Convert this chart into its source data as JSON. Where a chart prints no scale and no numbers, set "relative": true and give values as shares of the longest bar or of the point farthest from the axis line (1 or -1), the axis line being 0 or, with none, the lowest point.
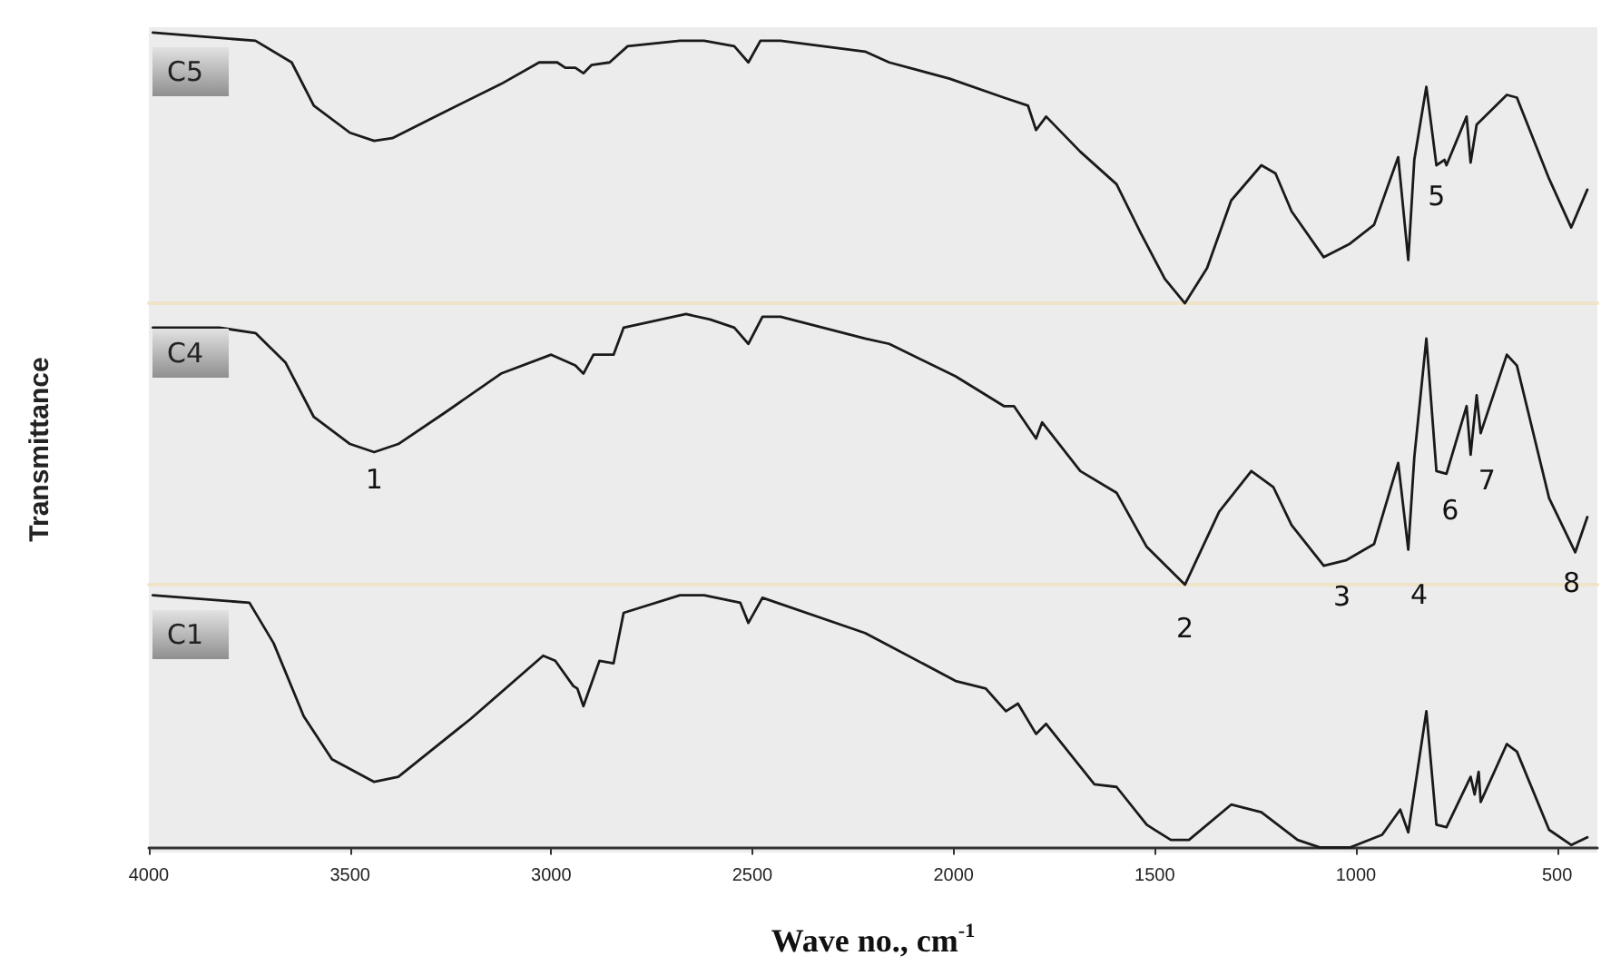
{
  "chart_data": [
    {
      "type": "line",
      "title": "C5",
      "relative": true,
      "color": "#1a1a1a",
      "marker": "none",
      "line_style": "solid",
      "xlim": [
        4000,
        400
      ],
      "xticks": [
        4000,
        3500,
        3000,
        2500,
        2000,
        1500,
        1000,
        500
      ],
      "tick_labels": false,
      "x": [
        3990,
        3735,
        3645,
        3590,
        3500,
        3440,
        3395,
        3275,
        3125,
        3030,
        2985,
        2965,
        2940,
        2920,
        2900,
        2855,
        2810,
        2680,
        2620,
        2545,
        2510,
        2480,
        2430,
        2220,
        2160,
        2010,
        1875,
        1815,
        1795,
        1770,
        1685,
        1595,
        1535,
        1475,
        1425,
        1370,
        1310,
        1235,
        1200,
        1160,
        1080,
        1015,
        955,
        895,
        870,
        855,
        825,
        800,
        780,
        775,
        725,
        715,
        700,
        625,
        600,
        520,
        465,
        425
      ],
      "values": [
        1.0,
        0.97,
        0.89,
        0.73,
        0.63,
        0.6,
        0.61,
        0.7,
        0.81,
        0.89,
        0.89,
        0.87,
        0.87,
        0.85,
        0.88,
        0.89,
        0.95,
        0.97,
        0.97,
        0.95,
        0.89,
        0.97,
        0.97,
        0.93,
        0.89,
        0.83,
        0.76,
        0.73,
        0.64,
        0.69,
        0.56,
        0.44,
        0.26,
        0.09,
        0.0,
        0.13,
        0.38,
        0.51,
        0.48,
        0.34,
        0.17,
        0.22,
        0.29,
        0.54,
        0.16,
        0.53,
        0.8,
        0.51,
        0.53,
        0.51,
        0.69,
        0.52,
        0.66,
        0.77,
        0.76,
        0.46,
        0.28,
        0.42
      ],
      "annotations": [
        {
          "text": "5",
          "x": 800,
          "y": 0.51
        }
      ]
    },
    {
      "type": "line",
      "title": "C4",
      "ylabel": "Transmittance",
      "relative": true,
      "color": "#1a1a1a",
      "marker": "none",
      "line_style": "solid",
      "xlim": [
        4000,
        400
      ],
      "xticks": [
        4000,
        3500,
        3000,
        2500,
        2000,
        1500,
        1000,
        500
      ],
      "tick_labels": false,
      "x": [
        3990,
        3825,
        3735,
        3660,
        3590,
        3500,
        3440,
        3380,
        3260,
        3125,
        3000,
        2940,
        2920,
        2895,
        2845,
        2820,
        2665,
        2605,
        2545,
        2510,
        2475,
        2430,
        2220,
        2160,
        1995,
        1875,
        1850,
        1795,
        1780,
        1685,
        1595,
        1520,
        1425,
        1340,
        1260,
        1205,
        1160,
        1080,
        1025,
        955,
        895,
        870,
        855,
        825,
        800,
        775,
        725,
        715,
        700,
        690,
        625,
        600,
        520,
        455,
        425
      ],
      "values": [
        0.95,
        0.95,
        0.93,
        0.82,
        0.62,
        0.52,
        0.49,
        0.52,
        0.64,
        0.78,
        0.85,
        0.81,
        0.78,
        0.85,
        0.85,
        0.95,
        1.0,
        0.98,
        0.95,
        0.89,
        0.99,
        0.99,
        0.91,
        0.89,
        0.77,
        0.66,
        0.66,
        0.54,
        0.6,
        0.42,
        0.34,
        0.14,
        0.0,
        0.27,
        0.42,
        0.36,
        0.22,
        0.07,
        0.09,
        0.15,
        0.45,
        0.13,
        0.47,
        0.91,
        0.42,
        0.41,
        0.66,
        0.48,
        0.7,
        0.56,
        0.85,
        0.81,
        0.32,
        0.12,
        0.25
      ],
      "annotations": [
        {
          "text": "1",
          "x": 3440,
          "y": 0.49
        },
        {
          "text": "2",
          "x": 1425,
          "y": 0.0
        },
        {
          "text": "3",
          "x": 1080,
          "y": 0.07
        },
        {
          "text": "4",
          "x": 870,
          "y": 0.13
        },
        {
          "text": "6",
          "x": 775,
          "y": 0.41
        },
        {
          "text": "7",
          "x": 715,
          "y": 0.48
        },
        {
          "text": "8",
          "x": 455,
          "y": 0.12
        }
      ]
    },
    {
      "type": "line",
      "title": "C1",
      "xlabel": "Wave no., cm$^{-1}$",
      "relative": true,
      "color": "#1a1a1a",
      "marker": "none",
      "line_style": "solid",
      "xlim": [
        4000,
        400
      ],
      "xticks": [
        4000,
        3500,
        3000,
        2500,
        2000,
        1500,
        1000,
        500
      ],
      "tick_labels": "x",
      "x": [
        3990,
        3750,
        3690,
        3615,
        3545,
        3440,
        3380,
        3200,
        3020,
        2990,
        2945,
        2935,
        2920,
        2880,
        2845,
        2820,
        2680,
        2620,
        2530,
        2510,
        2475,
        2220,
        2160,
        1995,
        1920,
        1870,
        1840,
        1795,
        1770,
        1650,
        1595,
        1520,
        1460,
        1415,
        1310,
        1235,
        1145,
        1090,
        1015,
        935,
        890,
        870,
        825,
        800,
        775,
        715,
        705,
        695,
        690,
        625,
        600,
        520,
        465,
        425
      ],
      "values": [
        1.0,
        0.97,
        0.81,
        0.52,
        0.35,
        0.26,
        0.28,
        0.51,
        0.76,
        0.74,
        0.64,
        0.63,
        0.56,
        0.74,
        0.73,
        0.93,
        1.0,
        1.0,
        0.97,
        0.89,
        0.99,
        0.85,
        0.8,
        0.66,
        0.63,
        0.54,
        0.57,
        0.45,
        0.49,
        0.25,
        0.24,
        0.09,
        0.03,
        0.03,
        0.17,
        0.14,
        0.03,
        0.0,
        0.0,
        0.05,
        0.15,
        0.06,
        0.54,
        0.09,
        0.08,
        0.28,
        0.21,
        0.3,
        0.18,
        0.41,
        0.38,
        0.07,
        0.01,
        0.04
      ]
    }
  ]
}
